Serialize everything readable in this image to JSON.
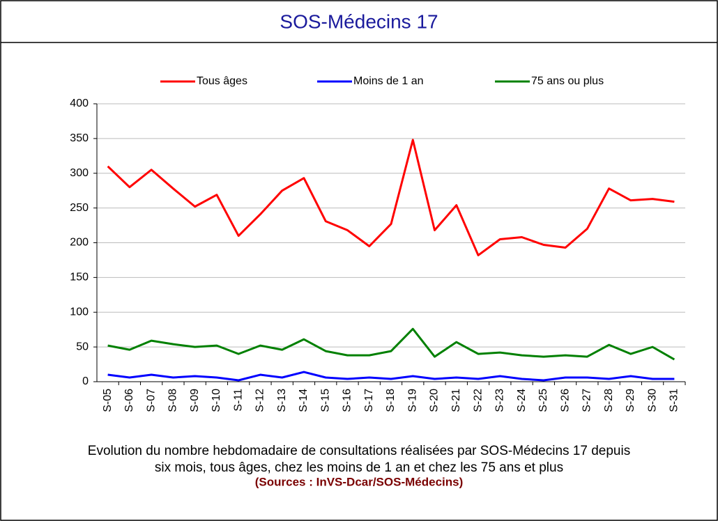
{
  "header": {
    "title": "SOS-Médecins 17"
  },
  "chart_data": {
    "type": "line",
    "categories": [
      "S-05",
      "S-06",
      "S-07",
      "S-08",
      "S-09",
      "S-10",
      "S-11",
      "S-12",
      "S-13",
      "S-14",
      "S-15",
      "S-16",
      "S-17",
      "S-18",
      "S-19",
      "S-20",
      "S-21",
      "S-22",
      "S-23",
      "S-24",
      "S-25",
      "S-26",
      "S-27",
      "S-28",
      "S-29",
      "S-30",
      "S-31"
    ],
    "series": [
      {
        "name": "Tous âges",
        "color": "#ff0000",
        "values": [
          310,
          280,
          305,
          278,
          252,
          269,
          210,
          241,
          275,
          293,
          231,
          218,
          195,
          227,
          348,
          218,
          254,
          182,
          205,
          208,
          197,
          193,
          220,
          278,
          261,
          263,
          259
        ]
      },
      {
        "name": "Moins de 1 an",
        "color": "#0000ff",
        "values": [
          10,
          6,
          10,
          6,
          8,
          6,
          2,
          10,
          6,
          14,
          6,
          4,
          6,
          4,
          8,
          4,
          6,
          4,
          8,
          4,
          2,
          6,
          6,
          4,
          8,
          4,
          4
        ]
      },
      {
        "name": "75 ans ou plus",
        "color": "#008000",
        "values": [
          52,
          46,
          59,
          54,
          50,
          52,
          40,
          52,
          46,
          61,
          44,
          38,
          38,
          44,
          76,
          36,
          57,
          40,
          42,
          38,
          36,
          38,
          36,
          53,
          40,
          50,
          32
        ]
      }
    ],
    "ylim": [
      0,
      400
    ],
    "yticks": [
      0,
      50,
      100,
      150,
      200,
      250,
      300,
      350,
      400
    ],
    "grid": true,
    "caption": [
      "Evolution du nombre hebdomadaire de consultations réalisées par SOS-Médecins 17 depuis",
      "six mois, tous âges, chez les moins de 1 an et chez les 75 ans  et plus"
    ],
    "source": "(Sources : InVS-Dcar/SOS-Médecins)"
  }
}
